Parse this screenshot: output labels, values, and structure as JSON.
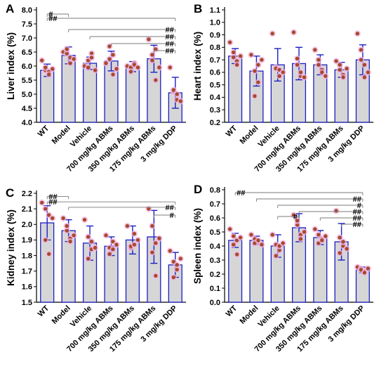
{
  "chart_data": [
    {
      "panel": "A",
      "type": "bar",
      "ylabel": "Liver index (%)",
      "ylim": [
        4.0,
        8.0
      ],
      "yticks": [
        "4.0",
        "4.5",
        "5.0",
        "5.5",
        "6.0",
        "6.5",
        "7.0",
        "7.5",
        "8.0"
      ],
      "categories": [
        "WT",
        "Model",
        "Vehicle",
        "700 mg/kg ABMs",
        "350 mg/kg ABMs",
        "175 mg/kg ABMs",
        "3 mg/kg DDP"
      ],
      "values": [
        5.85,
        6.38,
        6.1,
        6.18,
        5.98,
        6.26,
        5.05
      ],
      "errors": [
        0.22,
        0.3,
        0.22,
        0.35,
        0.18,
        0.48,
        0.55
      ],
      "points": [
        [
          6.2,
          5.85,
          5.8,
          5.95,
          5.7,
          5.9
        ],
        [
          6.5,
          6.45,
          6.3,
          6.6,
          6.1,
          6.25
        ],
        [
          6.0,
          6.2,
          6.45,
          5.95,
          6.3,
          5.85
        ],
        [
          6.1,
          6.7,
          5.7,
          6.25,
          6.4,
          5.9
        ],
        [
          6.0,
          5.95,
          6.1,
          5.8,
          6.05,
          5.95
        ],
        [
          6.95,
          6.2,
          5.5,
          6.4,
          6.6,
          5.95
        ],
        [
          5.95,
          5.1,
          4.8,
          5.15,
          5.0,
          4.75
        ]
      ],
      "brackets": [
        {
          "from": 0,
          "to": 1,
          "label": "#",
          "y": 7.85
        },
        {
          "from": 0,
          "to": 6,
          "label": "##",
          "y": 7.7
        },
        {
          "from": 1,
          "to": 6,
          "label": "##",
          "y": 7.3
        },
        {
          "from": 2,
          "to": 6,
          "label": "##",
          "y": 7.05
        },
        {
          "from": 3,
          "to": 6,
          "label": "##",
          "y": 6.8
        },
        {
          "from": 5,
          "to": 6,
          "label": "##",
          "y": 6.55
        }
      ]
    },
    {
      "panel": "B",
      "type": "bar",
      "ylabel": "Heart index (%)",
      "ylim": [
        0.2,
        1.1
      ],
      "yticks": [
        "0.2",
        "0.3",
        "0.4",
        "0.5",
        "0.6",
        "0.7",
        "0.8",
        "0.9",
        "1.0",
        "1.1"
      ],
      "categories": [
        "WT",
        "Model",
        "Vehicle",
        "700 mg/kg ABMs",
        "350 mg/kg ABMs",
        "175 mg/kg ABMs",
        "3 mg/kg DDP"
      ],
      "values": [
        0.73,
        0.61,
        0.66,
        0.67,
        0.66,
        0.62,
        0.7
      ],
      "errors": [
        0.06,
        0.12,
        0.13,
        0.13,
        0.08,
        0.06,
        0.12
      ],
      "points": [
        [
          0.84,
          0.76,
          0.69,
          0.72,
          0.66,
          0.73
        ],
        [
          0.74,
          0.61,
          0.52,
          0.41,
          0.66,
          0.7
        ],
        [
          0.91,
          0.64,
          0.57,
          0.63,
          0.62,
          0.6
        ],
        [
          0.92,
          0.71,
          0.57,
          0.66,
          0.6,
          0.56
        ],
        [
          0.78,
          0.7,
          0.62,
          0.66,
          0.6,
          0.57
        ],
        [
          0.69,
          0.66,
          0.58,
          0.62,
          0.56,
          0.63
        ],
        [
          0.91,
          0.78,
          0.66,
          0.7,
          0.56,
          0.6
        ]
      ],
      "brackets": []
    },
    {
      "panel": "C",
      "type": "bar",
      "ylabel": "Kidney index (%)",
      "ylim": [
        1.5,
        2.2
      ],
      "yticks": [
        "1.5",
        "1.6",
        "1.7",
        "1.8",
        "1.9",
        "2.0",
        "2.1",
        "2.2"
      ],
      "categories": [
        "WT",
        "Model",
        "Vehicle",
        "700 mg/kg ABMs",
        "350 mg/kg ABMs",
        "175 mg/kg ABMs",
        "3 mg/kg DDP"
      ],
      "values": [
        2.01,
        1.96,
        1.88,
        1.86,
        1.9,
        1.92,
        1.74
      ],
      "errors": [
        0.11,
        0.07,
        0.11,
        0.06,
        0.09,
        0.17,
        0.08
      ],
      "points": [
        [
          2.14,
          2.1,
          2.06,
          1.9,
          1.81,
          2.04
        ],
        [
          2.04,
          1.96,
          1.91,
          1.99,
          1.89,
          1.93
        ],
        [
          2.03,
          1.92,
          1.84,
          1.78,
          1.89,
          1.85
        ],
        [
          1.93,
          1.85,
          1.89,
          1.81,
          1.84,
          1.87
        ],
        [
          1.99,
          1.85,
          1.94,
          1.86,
          1.87,
          1.9
        ],
        [
          2.1,
          1.99,
          1.88,
          1.82,
          1.67,
          1.91
        ],
        [
          1.83,
          1.76,
          1.71,
          1.66,
          1.74,
          1.78
        ]
      ],
      "brackets": [
        {
          "from": 0,
          "to": 1,
          "label": "##",
          "y": 2.18
        },
        {
          "from": 0,
          "to": 6,
          "label": "##",
          "y": 2.145
        },
        {
          "from": 1,
          "to": 6,
          "label": "##",
          "y": 2.11
        },
        {
          "from": 5,
          "to": 6,
          "label": "#",
          "y": 2.06
        }
      ]
    },
    {
      "panel": "D",
      "type": "bar",
      "ylabel": "Spleen index (%)",
      "ylim": [
        0.0,
        0.8
      ],
      "yticks": [
        "0.0",
        "0.1",
        "0.2",
        "0.3",
        "0.4",
        "0.5",
        "0.6",
        "0.7",
        "0.8"
      ],
      "categories": [
        "WT",
        "Model",
        "Vehicle",
        "700 mg/kg ABMs",
        "350 mg/kg ABMs",
        "175 mg/kg ABMs",
        "3 mg/kg DDP"
      ],
      "values": [
        0.44,
        0.44,
        0.4,
        0.53,
        0.46,
        0.43,
        0.23
      ],
      "errors": [
        0.05,
        0.03,
        0.08,
        0.1,
        0.05,
        0.13,
        0.02
      ],
      "points": [
        [
          0.52,
          0.47,
          0.44,
          0.41,
          0.34,
          0.46
        ],
        [
          0.48,
          0.45,
          0.43,
          0.42,
          0.44,
          0.41
        ],
        [
          0.48,
          0.41,
          0.37,
          0.33,
          0.4,
          0.42
        ],
        [
          0.62,
          0.55,
          0.48,
          0.58,
          0.45,
          0.5
        ],
        [
          0.52,
          0.48,
          0.45,
          0.42,
          0.44,
          0.47
        ],
        [
          0.65,
          0.46,
          0.4,
          0.35,
          0.43,
          0.38
        ],
        [
          0.25,
          0.24,
          0.22,
          0.23,
          0.21,
          0.24
        ]
      ],
      "brackets": [
        {
          "from": 0,
          "to": 6,
          "label": "##",
          "y": 0.78
        },
        {
          "from": 1,
          "to": 6,
          "label": "##",
          "y": 0.735
        },
        {
          "from": 2,
          "to": 6,
          "label": "#",
          "y": 0.69
        },
        {
          "from": 2,
          "to": 3,
          "label": "#",
          "y": 0.61
        },
        {
          "from": 3,
          "to": 6,
          "label": "##",
          "y": 0.645
        },
        {
          "from": 4,
          "to": 6,
          "label": "##",
          "y": 0.6
        },
        {
          "from": 5,
          "to": 6,
          "label": "##",
          "y": 0.555
        }
      ]
    }
  ],
  "colors": {
    "bar_fill": "#d6d6d6",
    "bar_stroke": "#1c1fc4",
    "error_bar": "#1c1fc4",
    "point": "#a64a2a",
    "point_halo": "#f2b6e6",
    "bracket": "#7a7a7a",
    "axis": "#000000"
  }
}
